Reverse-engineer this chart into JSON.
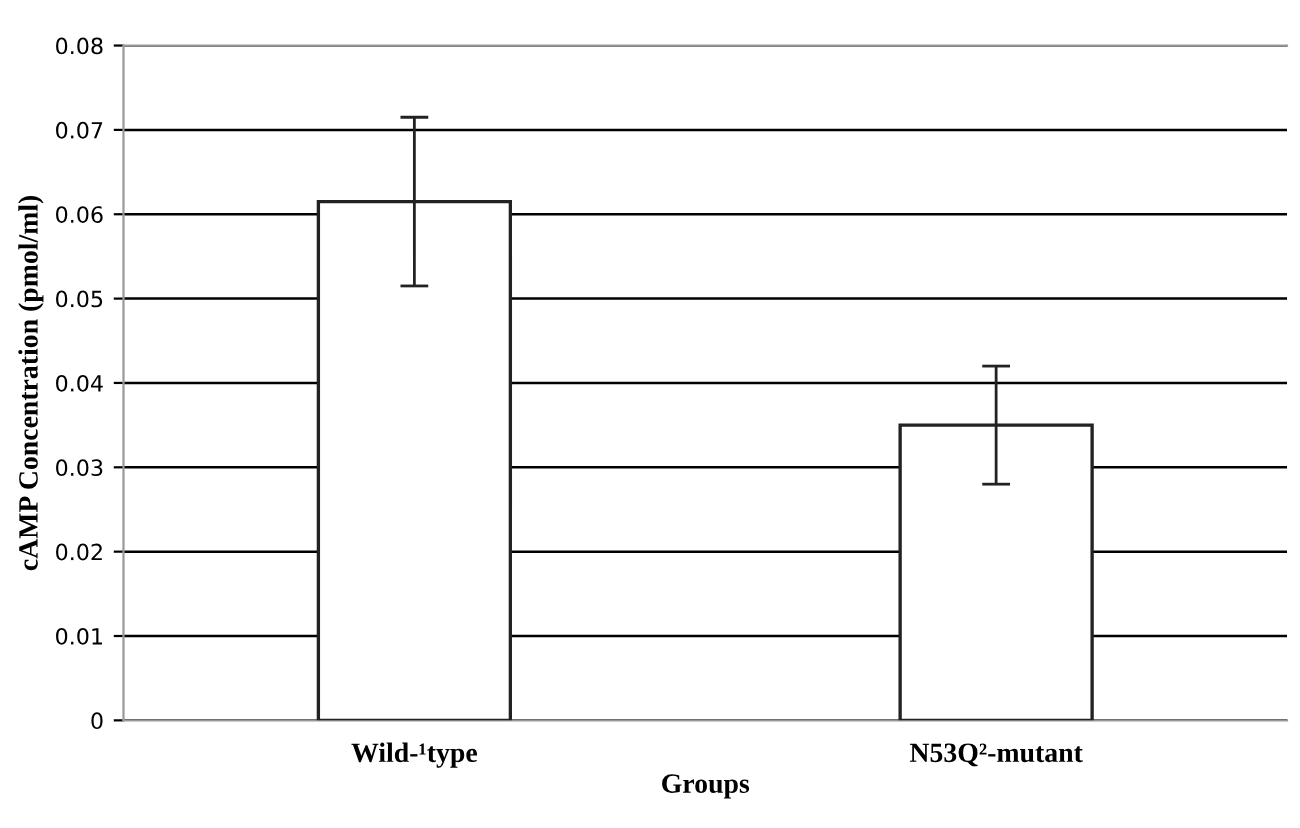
{
  "chart_data": {
    "type": "bar",
    "xlabel": "Groups",
    "ylabel": "cAMP Concentration (pmol/ml)",
    "categories": [
      "Wild-¹type",
      "N53Q²-mutant"
    ],
    "series": [
      {
        "color": "#ffffff",
        "values": [
          0.0615,
          0.035
        ],
        "errors": [
          0.01,
          0.007
        ]
      }
    ],
    "ylim": [
      0,
      0.08
    ],
    "yticks": [
      0,
      0.01,
      0.02,
      0.03,
      0.04,
      0.05,
      0.06,
      0.07,
      0.08
    ],
    "grid": "y",
    "legend": false
  }
}
